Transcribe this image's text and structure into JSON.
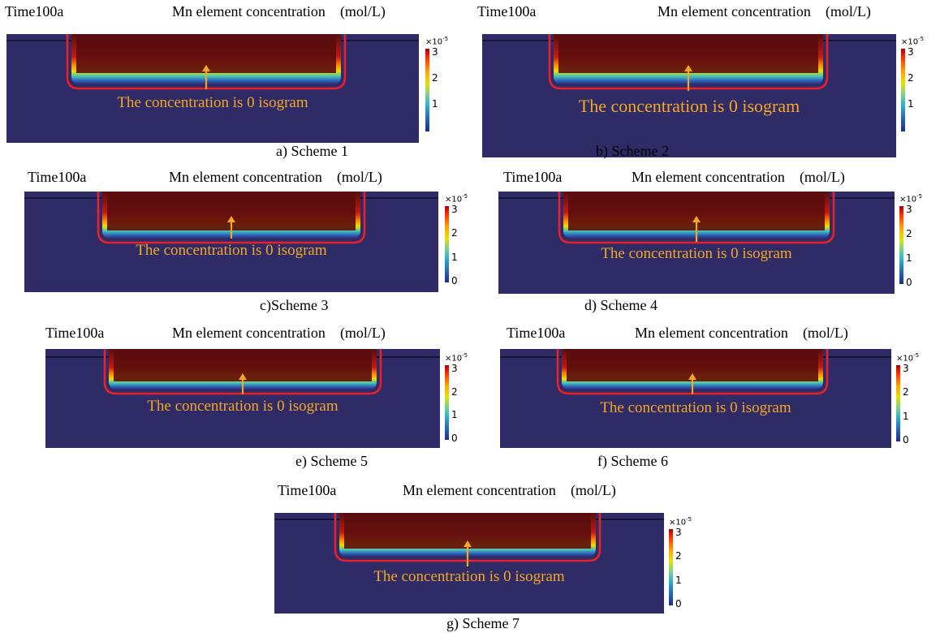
{
  "panels": [
    {
      "time": "Time100a",
      "title": "Mn element concentration",
      "unit": "(mol/L)",
      "annotation": "The concentration is 0 isogram",
      "multiplier": "×10",
      "exponent": "-5",
      "ticks": [
        "3",
        "2",
        "1"
      ],
      "caption": "a)   Scheme 1"
    },
    {
      "time": "Time100a",
      "title": "Mn element concentration",
      "unit": "(mol/L)",
      "annotation": "The concentration is 0 isogram",
      "multiplier": "×10",
      "exponent": "-5",
      "ticks": [
        "3",
        "2",
        "1"
      ],
      "caption": "b) Scheme 2"
    },
    {
      "time": "Time100a",
      "title": "Mn element concentration",
      "unit": "(mol/L)",
      "annotation": "The concentration is 0 isogram",
      "multiplier": "×10",
      "exponent": "-5",
      "ticks": [
        "3",
        "2",
        "1",
        "0"
      ],
      "caption": "c)Scheme 3"
    },
    {
      "time": "Time100a",
      "title": "Mn element concentration",
      "unit": "(mol/L)",
      "annotation": "The concentration is 0 isogram",
      "multiplier": "×10",
      "exponent": "-5",
      "ticks": [
        "3",
        "2",
        "1",
        "0"
      ],
      "caption": "d) Scheme 4"
    },
    {
      "time": "Time100a",
      "title": "Mn element concentration",
      "unit": "(mol/L)",
      "annotation": "The concentration is 0 isogram",
      "multiplier": "×10",
      "exponent": "-5",
      "ticks": [
        "3",
        "2",
        "1",
        "0"
      ],
      "caption": "e) Scheme 5"
    },
    {
      "time": "Time100a",
      "title": "Mn element concentration",
      "unit": "(mol/L)",
      "annotation": "The concentration is 0 isogram",
      "multiplier": "×10",
      "exponent": "-5",
      "ticks": [
        "3",
        "2",
        "1",
        "0"
      ],
      "caption": "f) Scheme 6"
    },
    {
      "time": "Time100a",
      "title": "Mn element concentration",
      "unit": "(mol/L)",
      "annotation": "The concentration is 0 isogram",
      "multiplier": "×10",
      "exponent": "-5",
      "ticks": [
        "3",
        "2",
        "1",
        "0"
      ],
      "caption": "g) Scheme 7"
    }
  ],
  "colors": {
    "domain_background": "#2e2b67",
    "isoline": "#e8202a",
    "annotation": "#f5a623",
    "high_concentration": "#5a0d0d"
  }
}
